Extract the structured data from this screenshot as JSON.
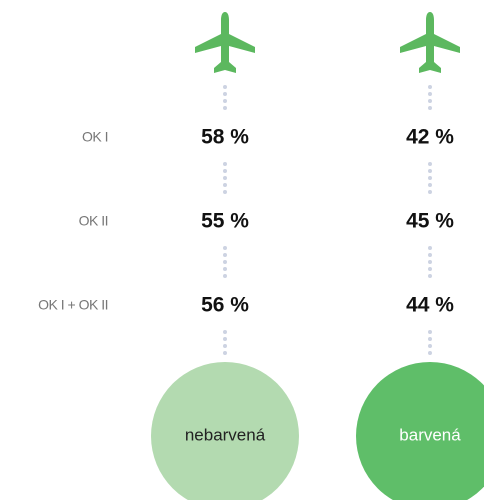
{
  "rows": [
    "OK I",
    "OK II",
    "OK I + OK II"
  ],
  "columns": [
    {
      "name": "nebarvená",
      "values": [
        "58 %",
        "55 %",
        "56 %"
      ]
    },
    {
      "name": "barvená",
      "values": [
        "42 %",
        "45 %",
        "44 %"
      ]
    }
  ]
}
